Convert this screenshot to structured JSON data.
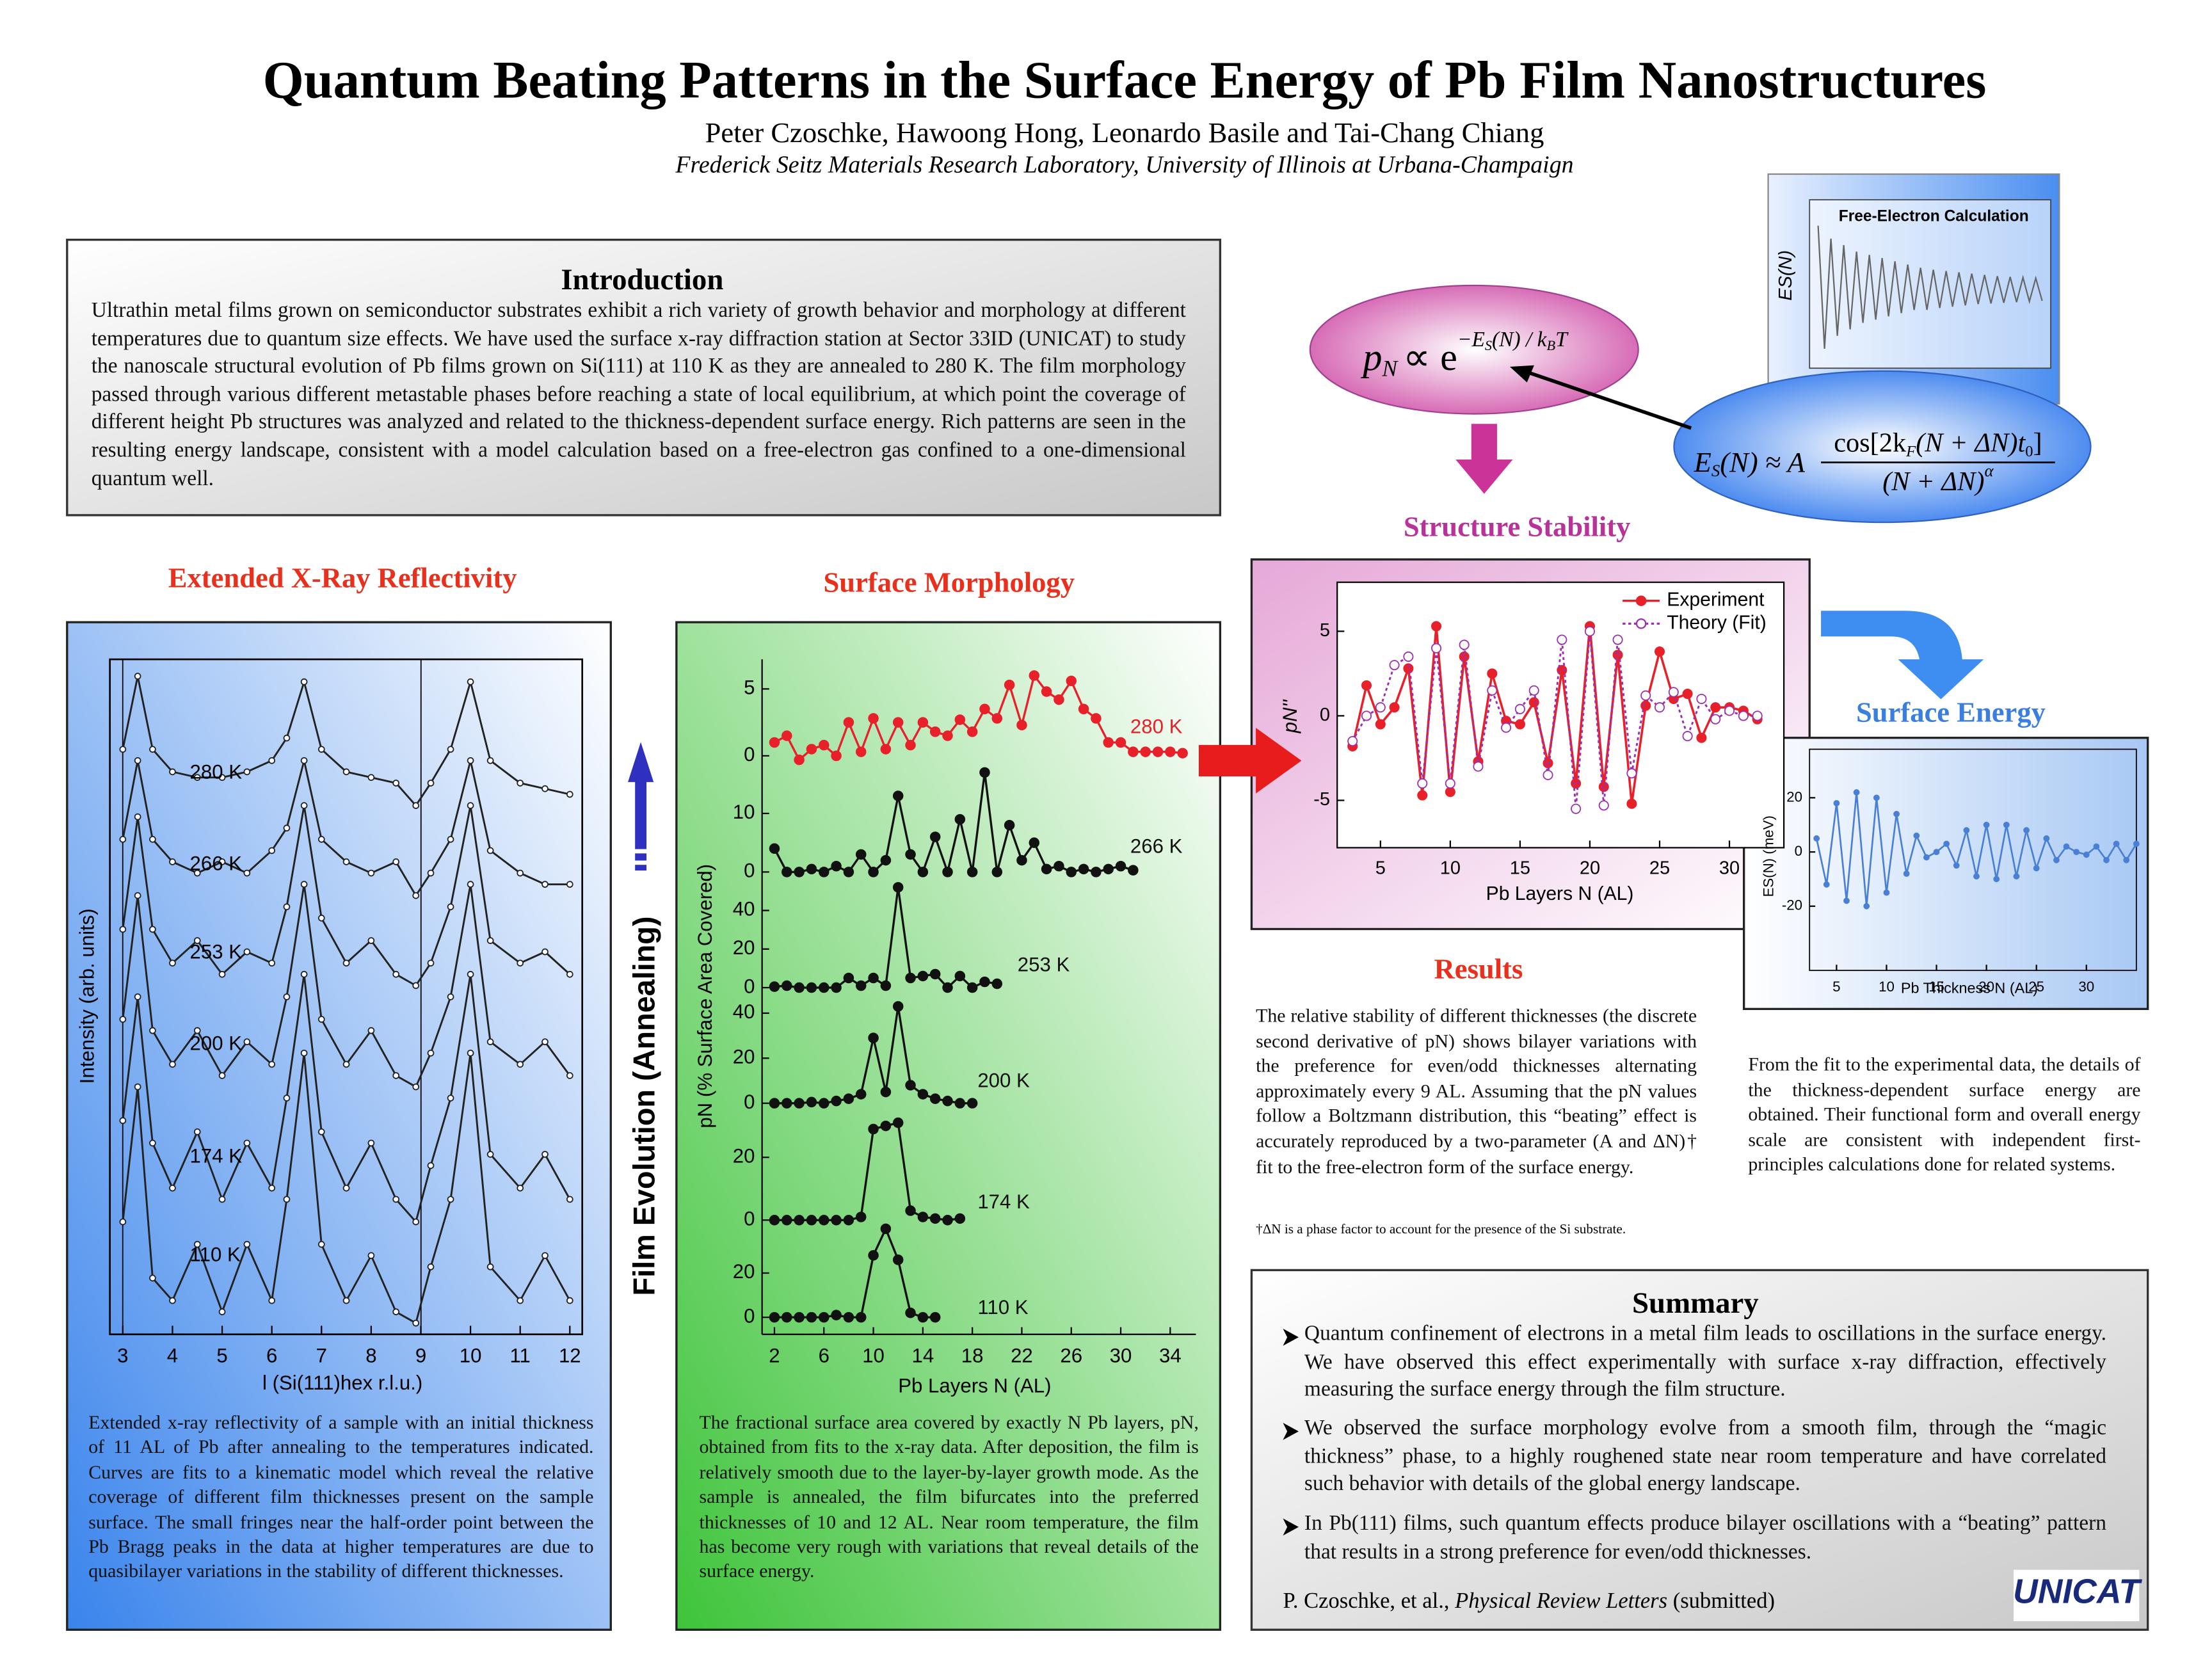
{
  "header": {
    "title": "Quantum Beating Patterns in the Surface Energy of Pb Film Nanostructures",
    "authors": "Peter Czoschke, Hawoong Hong, Leonardo Basile and Tai-Chang Chiang",
    "affiliation": "Frederick Seitz Materials Research Laboratory, University of Illinois at Urbana-Champaign"
  },
  "introduction": {
    "title": "Introduction",
    "text": "Ultrathin metal films grown on semiconductor substrates exhibit a rich variety of growth behavior and morphology at different temperatures due to quantum size effects. We have used the surface x-ray diffraction station at Sector 33ID (UNICAT) to study the nanoscale structural evolution of Pb films grown on Si(111) at 110 K as they are annealed to 280 K.  The film morphology passed through various different metastable phases before reaching a state of local equilibrium, at which point the coverage of different height Pb structures was analyzed and related to the thickness-dependent surface energy. Rich patterns are seen in the resulting energy landscape, consistent with a model calculation based on a free-electron gas confined to a one-dimensional quantum well."
  },
  "sections": {
    "xrr": "Extended X-Ray Reflectivity",
    "morphology": "Surface Morphology",
    "stability": "Structure Stability",
    "energy": "Surface Energy",
    "results": "Results"
  },
  "film_evolution": "Film Evolution (Annealing)",
  "formulas": {
    "boltzmann": {
      "p": "p",
      "p_sub": "N",
      "rel": "∝ e",
      "exp": "−E",
      "exp_sub": "S",
      "exp_mid": "(N) / k",
      "exp_sub2": "B",
      "exp_end": "T"
    },
    "energy": {
      "lhs": "E",
      "lhs_sub": "S",
      "lhs_rest": "(N) ≈ A",
      "numerator": "cos[2k",
      "num_sub": "F",
      "num_mid": "(N + ΔN)t",
      "num_sub2": "0",
      "num_end": "]",
      "denominator": "(N + ΔN)",
      "den_sup": "α"
    }
  },
  "captions": {
    "xrr": "Extended x-ray reflectivity of a sample with an initial thickness of 11 AL of Pb after annealing to the temperatures indicated. Curves are fits to a kinematic model which reveal the relative coverage of different film thicknesses present on the sample surface.  The small fringes near the half-order point between the Pb Bragg peaks in the data at higher temperatures are due to quasibilayer variations in the stability of different thicknesses.",
    "morphology": "The fractional surface area covered by exactly N Pb layers, pN, obtained from fits to the x-ray data.  After deposition, the film is relatively smooth due to the layer-by-layer growth mode.  As the sample is annealed, the film bifurcates into the preferred thicknesses of 10 and 12 AL.  Near room temperature, the film has become very rough with variations that reveal details of the surface energy.",
    "results": "The relative stability of different thicknesses (the discrete second derivative of pN) shows bilayer variations with the preference for even/odd thicknesses alternating approximately every 9 AL. Assuming that the pN values follow a Boltzmann distribution, this “beating” effect is accurately reproduced by a two-parameter (A and ΔN)† fit to the free-electron form of the surface energy.",
    "footnote": "†ΔN is a phase factor to account for the presence of the Si substrate.",
    "energy": "From the fit to the experimental data, the details of the thickness-dependent surface energy are obtained. Their functional form and overall energy scale are consistent with independent first-principles calculations done for related systems."
  },
  "summary": {
    "title": "Summary",
    "items": [
      "Quantum confinement of electrons in a metal film leads to oscillations in the surface energy.  We have observed this effect experimentally with surface x-ray diffraction, effectively measuring the surface energy through the film structure.",
      "We observed the surface morphology evolve from a smooth film, through the “magic thickness” phase, to a highly roughened state near room temperature and have correlated such behavior with details of the global energy landscape.",
      "In Pb(111) films, such quantum effects produce bilayer oscillations with a “beating” pattern that results in a strong preference for even/odd thicknesses."
    ],
    "reference_authors": "P. Czoschke, et al., ",
    "reference_journal": "Physical Review Letters",
    "reference_status": " (submitted)"
  },
  "logo": "UNICAT",
  "chart_data": [
    {
      "type": "line",
      "xlabel": "l (Si(111)hex r.l.u.)",
      "ylabel": "Intensity (arb. units)",
      "x": [
        3.0,
        3.3,
        3.6,
        4,
        4.5,
        5,
        5.5,
        6,
        6.3,
        6.65,
        7,
        7.5,
        8,
        8.5,
        8.9,
        9.2,
        9.6,
        10,
        10.4,
        11,
        11.5,
        12
      ],
      "xlim": [
        2.74,
        12.25
      ],
      "xticks": [
        3,
        4,
        5,
        6,
        7,
        8,
        9,
        10,
        11,
        12
      ],
      "ylim": [
        0,
        60
      ],
      "series": [
        {
          "name": "280 K",
          "color": "#222222",
          "values": [
            52,
            58.5,
            52,
            50,
            49.5,
            49.5,
            50,
            51,
            53,
            58,
            52,
            50,
            49.5,
            49,
            47,
            49,
            52,
            58,
            51,
            49,
            48.5,
            48
          ]
        },
        {
          "name": "266 K",
          "color": "#222222",
          "values": [
            44,
            51,
            44,
            42,
            41,
            42,
            41,
            43,
            45,
            51,
            44,
            42,
            41,
            42,
            39,
            41,
            44,
            51,
            43,
            41,
            40,
            40
          ]
        },
        {
          "name": "253 K",
          "color": "#222222",
          "values": [
            36,
            46,
            36,
            33,
            35,
            32,
            34,
            33,
            38,
            47,
            37,
            33,
            35,
            32,
            31,
            33,
            38,
            47,
            35,
            33,
            34,
            32
          ]
        },
        {
          "name": "200 K",
          "color": "#222222",
          "values": [
            28,
            39,
            27,
            24,
            27,
            23,
            26,
            24,
            30,
            40,
            28,
            24,
            27,
            23,
            22,
            25,
            30,
            40,
            26,
            24,
            26,
            23
          ]
        },
        {
          "name": "174 K",
          "color": "#222222",
          "values": [
            19,
            30,
            17,
            13,
            18,
            12,
            17,
            13,
            21,
            32,
            18,
            13,
            17,
            12,
            10,
            15,
            21,
            32,
            16,
            13,
            16,
            12
          ]
        },
        {
          "name": "110 K",
          "color": "#222222",
          "values": [
            10,
            22,
            5,
            3,
            8,
            2,
            8,
            3,
            12,
            25,
            8,
            3,
            7,
            2,
            1,
            6,
            12,
            25,
            6,
            3,
            7,
            3
          ]
        }
      ]
    },
    {
      "type": "line",
      "xlabel": "Pb Layers N (AL)",
      "ylabel": "pN  (% Surface Area Covered)",
      "xlim": [
        1,
        35.5
      ],
      "xticks": [
        2,
        6,
        10,
        14,
        18,
        22,
        26,
        30,
        34
      ],
      "series": [
        {
          "name": "280 K",
          "color": "#e8202a",
          "ylim": [
            -1,
            7
          ],
          "yticks": [
            0,
            5
          ],
          "x": [
            2,
            3,
            4,
            5,
            6,
            7,
            8,
            9,
            10,
            11,
            12,
            13,
            14,
            15,
            16,
            17,
            18,
            19,
            20,
            21,
            22,
            23,
            24,
            25,
            26,
            27,
            28,
            29,
            30,
            31,
            32,
            33,
            34,
            35
          ],
          "values": [
            1,
            1.5,
            -0.3,
            0.5,
            0.8,
            0,
            2.5,
            0.3,
            2.8,
            0.5,
            2.5,
            0.8,
            2.5,
            1.8,
            1.5,
            2.7,
            1.8,
            3.5,
            2.8,
            5.3,
            2.3,
            6,
            4.8,
            4.2,
            5.6,
            3.5,
            2.8,
            1,
            1,
            0.3,
            0.3,
            0.3,
            0.3,
            0.2
          ]
        },
        {
          "name": "266 K",
          "color": "#111111",
          "ylim": [
            -1.7,
            17.8
          ],
          "yticks": [
            0,
            10
          ],
          "x": [
            2,
            3,
            4,
            5,
            6,
            7,
            8,
            9,
            10,
            11,
            12,
            13,
            14,
            15,
            16,
            17,
            18,
            19,
            20,
            21,
            22,
            23,
            24,
            25,
            26,
            27,
            28,
            29,
            30,
            31
          ],
          "values": [
            4,
            0,
            0,
            0.5,
            0,
            1,
            0,
            3,
            0,
            2,
            13,
            3,
            0,
            6,
            0,
            9,
            0,
            17,
            0,
            8,
            2,
            5,
            0.5,
            1,
            0,
            0.5,
            0,
            0.5,
            1,
            0.3
          ]
        },
        {
          "name": "253 K",
          "color": "#111111",
          "ylim": [
            -4.4,
            53.3
          ],
          "yticks": [
            0,
            20,
            40
          ],
          "x": [
            2,
            3,
            4,
            5,
            6,
            7,
            8,
            9,
            10,
            11,
            12,
            13,
            14,
            15,
            16,
            17,
            18,
            19,
            20
          ],
          "values": [
            0.5,
            1,
            0,
            0,
            0,
            0,
            5,
            1,
            5,
            1,
            52,
            5,
            6,
            7,
            0,
            6,
            0,
            3,
            2
          ]
        },
        {
          "name": "200 K",
          "color": "#111111",
          "ylim": [
            -4.4,
            46.3
          ],
          "yticks": [
            0,
            20,
            40
          ],
          "x": [
            2,
            3,
            4,
            5,
            6,
            7,
            8,
            9,
            10,
            11,
            12,
            13,
            14,
            15,
            16,
            17,
            18
          ],
          "values": [
            0,
            0,
            0,
            0.5,
            0,
            1,
            2,
            4,
            29,
            5,
            43,
            8,
            4,
            2,
            1,
            0,
            0
          ]
        },
        {
          "name": "174 K",
          "color": "#111111",
          "ylim": [
            -3.2,
            32.7
          ],
          "yticks": [
            0,
            20
          ],
          "x": [
            2,
            3,
            4,
            5,
            6,
            7,
            8,
            9,
            10,
            11,
            12,
            13,
            14,
            15,
            16,
            17
          ],
          "values": [
            0,
            0,
            0,
            0,
            0,
            0,
            0,
            1,
            29,
            30,
            31,
            3,
            1,
            0.5,
            0,
            0.5
          ]
        },
        {
          "name": "110 K",
          "color": "#111111",
          "ylim": [
            -7.7,
            43.9
          ],
          "yticks": [
            0,
            20
          ],
          "x": [
            2,
            3,
            4,
            5,
            6,
            7,
            8,
            9,
            10,
            11,
            12,
            13,
            14,
            15
          ],
          "values": [
            0,
            0,
            0,
            0,
            0,
            1,
            0,
            0,
            28,
            40,
            26,
            2,
            0,
            0
          ]
        }
      ]
    },
    {
      "type": "line",
      "xlabel": "Pb Layers N (AL)",
      "ylabel": "pN''",
      "legend": "upper right",
      "x": [
        3,
        4,
        5,
        6,
        7,
        8,
        9,
        10,
        11,
        12,
        13,
        14,
        15,
        16,
        17,
        18,
        19,
        20,
        21,
        22,
        23,
        24,
        25,
        26,
        27,
        28,
        29,
        30,
        31,
        32
      ],
      "xlim": [
        1.9,
        33.9
      ],
      "ylim": [
        -7.8,
        7.9
      ],
      "xticks": [
        5,
        10,
        15,
        20,
        25,
        30
      ],
      "yticks": [
        -5,
        0,
        5
      ],
      "series": [
        {
          "name": "Experiment",
          "color": "#e8202a",
          "style": "solid",
          "values": [
            -1.8,
            1.8,
            -0.5,
            0.5,
            2.8,
            -4.7,
            5.3,
            -4.5,
            3.5,
            -2.7,
            2.5,
            -0.3,
            -0.5,
            0.8,
            -2.8,
            2.7,
            -4,
            5.3,
            -4.2,
            3.6,
            -5.2,
            0.6,
            3.8,
            1,
            1.3,
            -1.3,
            0.5,
            0.5,
            0.3,
            -0.2
          ]
        },
        {
          "name": "Theory (Fit)",
          "color": "#9b2fae",
          "style": "dotted",
          "values": [
            -1.5,
            0,
            0.5,
            3,
            3.5,
            -4,
            4,
            -4,
            4.2,
            -3,
            1.5,
            -0.7,
            0.4,
            1.5,
            -3.5,
            4.5,
            -5.5,
            5,
            -5.3,
            4.5,
            -3.4,
            1.2,
            0.5,
            1.4,
            -1.2,
            1,
            -0.2,
            0.3,
            0,
            0
          ]
        }
      ]
    },
    {
      "type": "line",
      "xlabel": "Pb Thickness N (AL)",
      "ylabel": "ES(N)  (meV)",
      "x": [
        3,
        4,
        5,
        6,
        7,
        8,
        9,
        10,
        11,
        12,
        13,
        14,
        15,
        16,
        17,
        18,
        19,
        20,
        21,
        22,
        23,
        24,
        25,
        26,
        27,
        28,
        29,
        30,
        31,
        32,
        33,
        34,
        35
      ],
      "xlim": [
        2.3,
        35
      ],
      "ylim": [
        -43.7,
        37.9
      ],
      "xticks": [
        5,
        10,
        15,
        20,
        25,
        30
      ],
      "yticks": [
        -20,
        0,
        20
      ],
      "series": [
        {
          "color": "#4a7fd6",
          "values": [
            5,
            -12,
            18,
            -18,
            22,
            -20,
            20,
            -15,
            14,
            -8,
            6,
            -2,
            0,
            3,
            -5,
            8,
            -9,
            10,
            -10,
            10,
            -9,
            8,
            -6,
            5,
            -3,
            2,
            0,
            -1,
            2,
            -3,
            3,
            -3,
            3
          ]
        }
      ]
    },
    {
      "type": "line",
      "title": "Free-Electron Calculation",
      "ylabel": "ES(N)",
      "ylim": [
        -12,
        14
      ],
      "series": [
        {
          "color": "#666666",
          "values": [
            10,
            -9,
            8,
            -7,
            7,
            -6,
            6,
            -5,
            5.5,
            -4.5,
            5,
            -4,
            4.5,
            -3.5,
            4,
            -3,
            3.5,
            -3,
            3.2,
            -2.7,
            3,
            -2.5,
            2.8,
            -2.3,
            2.6,
            -2.1,
            2.4,
            -2,
            2.2,
            -1.9,
            2.1,
            -1.8,
            2,
            -1.7,
            1.9,
            -1.6
          ]
        }
      ]
    }
  ]
}
